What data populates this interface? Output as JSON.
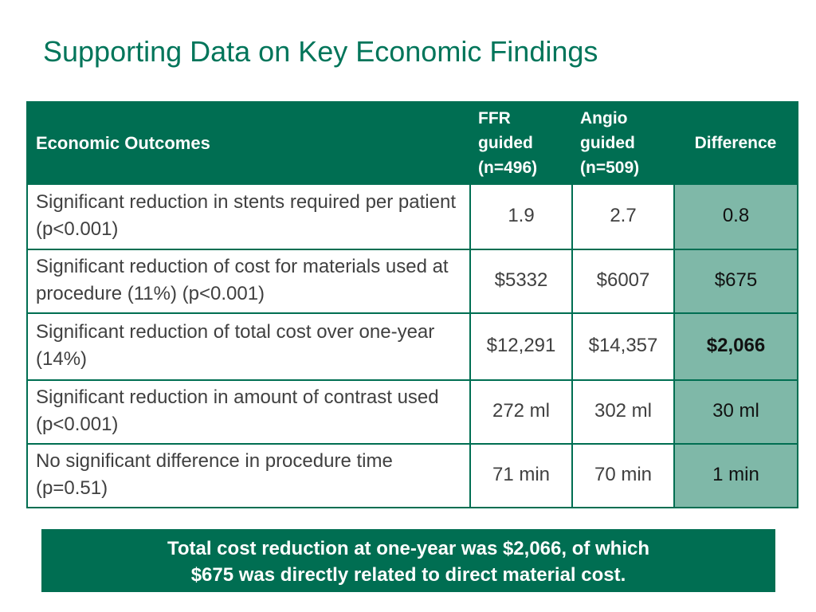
{
  "slide": {
    "title": "Supporting Data on Key Economic Findings",
    "colors": {
      "accent": "#006e52",
      "title": "#00755a",
      "difference_fill": "#7fb8a8"
    }
  },
  "table": {
    "headers": {
      "outcomes": "Economic Outcomes",
      "ffr": [
        "FFR",
        "guided",
        "(n=496)"
      ],
      "angio": [
        "Angio",
        "guided",
        "(n=509)"
      ],
      "difference": "Difference"
    },
    "rows": [
      {
        "outcome": "Significant reduction in stents required per patient (p<0.001)",
        "ffr": "1.9",
        "angio": "2.7",
        "difference": "0.8"
      },
      {
        "outcome": "Significant reduction of cost for materials used at procedure (11%) (p<0.001)",
        "ffr": "$5332",
        "angio": "$6007",
        "difference": "$675"
      },
      {
        "outcome": "Significant reduction of total cost over one-year (14%)",
        "ffr": "$12,291",
        "angio": "$14,357",
        "difference": "$2,066"
      },
      {
        "outcome": "Significant reduction in amount of contrast used (p<0.001)",
        "ffr": "272 ml",
        "angio": "302 ml",
        "difference": "30 ml"
      },
      {
        "outcome": "No significant difference in procedure time (p=0.51)",
        "ffr": "71 min",
        "angio": "70 min",
        "difference": "1 min"
      }
    ]
  },
  "summary": {
    "line1": "Total cost reduction at one-year was $2,066, of which",
    "line2": "$675 was directly related to direct material cost."
  }
}
